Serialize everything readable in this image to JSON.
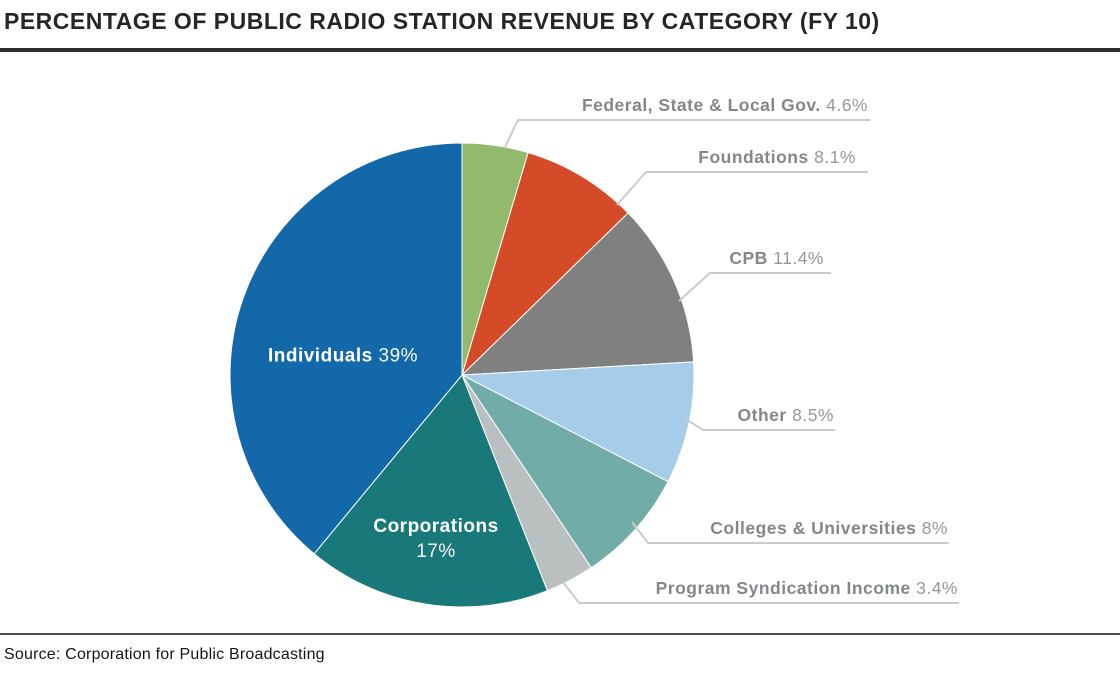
{
  "chart_data": {
    "type": "pie",
    "title": "PERCENTAGE OF PUBLIC RADIO STATION REVENUE BY CATEGORY (FY 10)",
    "values_unit": "%",
    "start_angle": "12 o'clock, clockwise",
    "legend_position": "callout labels right of pie, two labels inside slices",
    "slices": [
      {
        "label": "Federal, State & Local Gov.",
        "value": 4.6,
        "value_label": "4.6%",
        "color": "#92BA6C",
        "label_placement": "callout"
      },
      {
        "label": "Foundations",
        "value": 8.1,
        "value_label": "8.1%",
        "color": "#D64B27",
        "label_placement": "callout"
      },
      {
        "label": "CPB",
        "value": 11.4,
        "value_label": "11.4%",
        "color": "#808080",
        "label_placement": "callout"
      },
      {
        "label": "Other",
        "value": 8.5,
        "value_label": "8.5%",
        "color": "#A5CDE9",
        "label_placement": "callout"
      },
      {
        "label": "Colleges & Universities",
        "value": 8,
        "value_label": "8%",
        "color": "#71ACA9",
        "label_placement": "callout"
      },
      {
        "label": "Program Syndication Income",
        "value": 3.4,
        "value_label": "3.4%",
        "color": "#BAC0C0",
        "label_placement": "callout"
      },
      {
        "label": "Corporations",
        "value": 17,
        "value_label": "17%",
        "color": "#19797A",
        "label_placement": "inside"
      },
      {
        "label": "Individuals",
        "value": 39,
        "value_label": "39%",
        "color": "#1368A9",
        "label_placement": "inside"
      }
    ],
    "source": "Source: Corporation for Public Broadcasting"
  }
}
